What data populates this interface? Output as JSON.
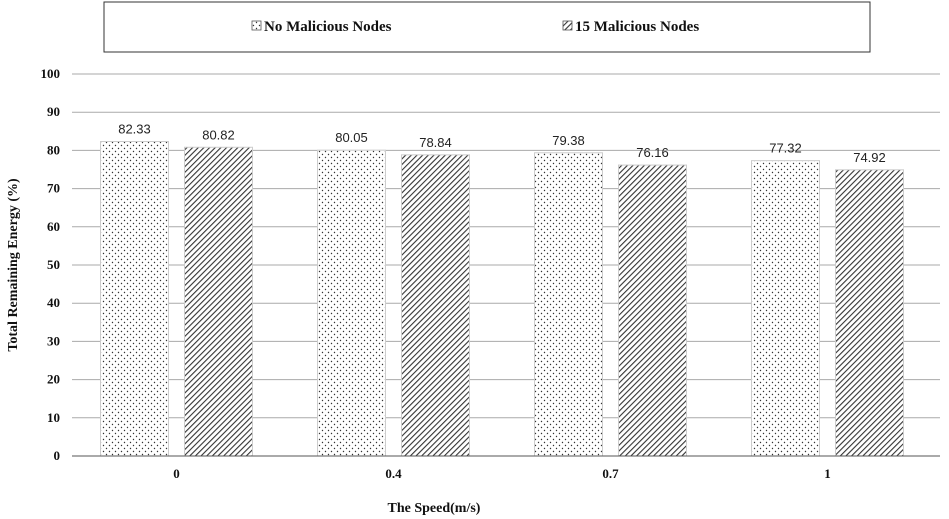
{
  "chart_data": {
    "type": "bar",
    "categories": [
      "0",
      "0.4",
      "0.7",
      "1"
    ],
    "series": [
      {
        "name": "No Malicious Nodes",
        "values": [
          82.33,
          80.05,
          79.38,
          77.32
        ],
        "pattern": "dots"
      },
      {
        "name": "15 Malicious Nodes",
        "values": [
          80.82,
          78.84,
          76.16,
          74.92
        ],
        "pattern": "diagonal-hatch"
      }
    ],
    "data_labels": [
      [
        "82.33",
        "80.05",
        "79.38",
        "77.32"
      ],
      [
        "80.82",
        "78.84",
        "76.16",
        "74.92"
      ]
    ],
    "xlabel": "The Speed(m/s)",
    "ylabel": "Total Remaining Energy (%)",
    "ylim": [
      0,
      100
    ],
    "yticks": [
      0,
      10,
      20,
      30,
      40,
      50,
      60,
      70,
      80,
      90,
      100
    ],
    "grid": true,
    "legend_position": "top",
    "colors": {
      "bar_fill": "#ffffff",
      "pattern": "#333333",
      "grid": "#aaaaaa",
      "axis": "#555555"
    }
  }
}
